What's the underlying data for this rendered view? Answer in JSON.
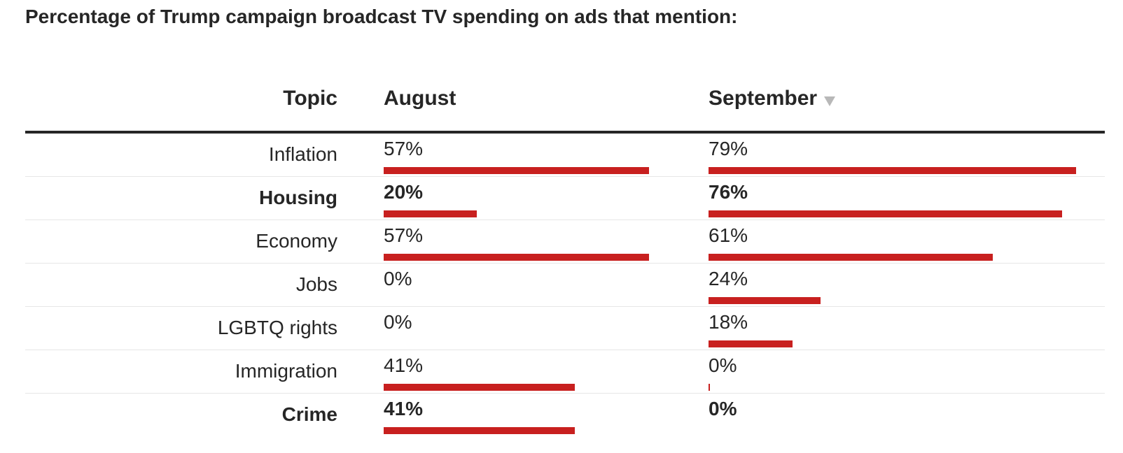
{
  "title": "Percentage of Trump campaign broadcast TV spending on ads that mention:",
  "headers": {
    "topic": "Topic",
    "august": "August",
    "september": "September"
  },
  "sort_icon": "sort-descending-triangle-icon",
  "colors": {
    "bar": "#c8201f",
    "text": "#262626",
    "rule": "#262626",
    "divider": "#e6e6e6",
    "sort_icon": "#b8b8b8"
  },
  "chart_data": {
    "type": "table",
    "columns": [
      "Topic",
      "August",
      "September"
    ],
    "sorted_by": "September",
    "bar_scale_max": 80,
    "rows": [
      {
        "topic": "Inflation",
        "august": 57,
        "august_label": "57%",
        "september": 79,
        "september_label": "79%",
        "highlight": false
      },
      {
        "topic": "Housing",
        "august": 20,
        "august_label": "20%",
        "september": 76,
        "september_label": "76%",
        "highlight": true
      },
      {
        "topic": "Economy",
        "august": 57,
        "august_label": "57%",
        "september": 61,
        "september_label": "61%",
        "highlight": false
      },
      {
        "topic": "Jobs",
        "august": 0,
        "august_label": "0%",
        "september": 24,
        "september_label": "24%",
        "highlight": false
      },
      {
        "topic": "LGBTQ rights",
        "august": 0,
        "august_label": "0%",
        "september": 18,
        "september_label": "18%",
        "highlight": false
      },
      {
        "topic": "Immigration",
        "august": 41,
        "august_label": "41%",
        "september": 0,
        "september_label": "0%",
        "highlight": false
      },
      {
        "topic": "Crime",
        "august": 41,
        "august_label": "41%",
        "september": 0,
        "september_label": "0%",
        "highlight": true
      }
    ]
  }
}
